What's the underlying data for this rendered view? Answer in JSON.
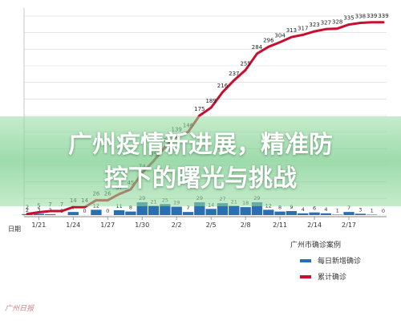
{
  "headline": {
    "line1": "广州疫情新进展，精准防",
    "line2": "控下的曙光与挑战"
  },
  "legend": {
    "title": "广州市确诊案例",
    "daily_label": "每日新增确诊",
    "cumulative_label": "累计确诊"
  },
  "watermark": "广州日报",
  "colors": {
    "daily": "#2a6fb0",
    "cumulative": "#c8102e",
    "grid": "#d8d8d8"
  },
  "chart_data": {
    "type": "bar",
    "x_axis_title": "日期",
    "tick_labels": [
      "1/21",
      "1/24",
      "1/27",
      "1/30",
      "2/2",
      "2/5",
      "2/8",
      "2/11",
      "2/14",
      "2/17"
    ],
    "ylim": [
      0,
      350
    ],
    "grid": true,
    "series": [
      {
        "name": "累计确诊",
        "type": "line",
        "values": [
          2,
          5,
          7,
          7,
          14,
          14,
          26,
          26,
          37,
          45,
          74,
          95,
          120,
          139,
          146,
          175,
          189,
          216,
          237,
          255,
          284,
          296,
          304,
          313,
          317,
          323,
          327,
          328,
          335,
          338,
          339,
          339
        ],
        "labels": [
          "2",
          "5",
          "7",
          "7",
          "14",
          "14",
          "26",
          "26",
          "37",
          "45",
          "74",
          "95",
          "120",
          "139",
          "146",
          "175",
          "189",
          "216",
          "237",
          "255",
          "284",
          "296",
          "304",
          "313",
          "317",
          "323",
          "327",
          "328",
          "335",
          "338",
          "339",
          "339"
        ]
      },
      {
        "name": "每日新增确诊",
        "type": "bar",
        "values": [
          2,
          3,
          2,
          0,
          7,
          0,
          12,
          0,
          11,
          8,
          29,
          21,
          25,
          19,
          7,
          29,
          14,
          27,
          21,
          18,
          29,
          12,
          8,
          9,
          4,
          6,
          4,
          1,
          7,
          3,
          1,
          0
        ],
        "labels": [
          "2",
          "3",
          "2",
          "0",
          "7",
          "0",
          "12",
          "0",
          "11",
          "8",
          "29",
          "21",
          "25",
          "19",
          "7",
          "29",
          "14",
          "27",
          "21",
          "18",
          "29",
          "12",
          "8",
          "9",
          "4",
          "6",
          "4",
          "1",
          "7",
          "3",
          "1",
          "0"
        ]
      }
    ]
  }
}
